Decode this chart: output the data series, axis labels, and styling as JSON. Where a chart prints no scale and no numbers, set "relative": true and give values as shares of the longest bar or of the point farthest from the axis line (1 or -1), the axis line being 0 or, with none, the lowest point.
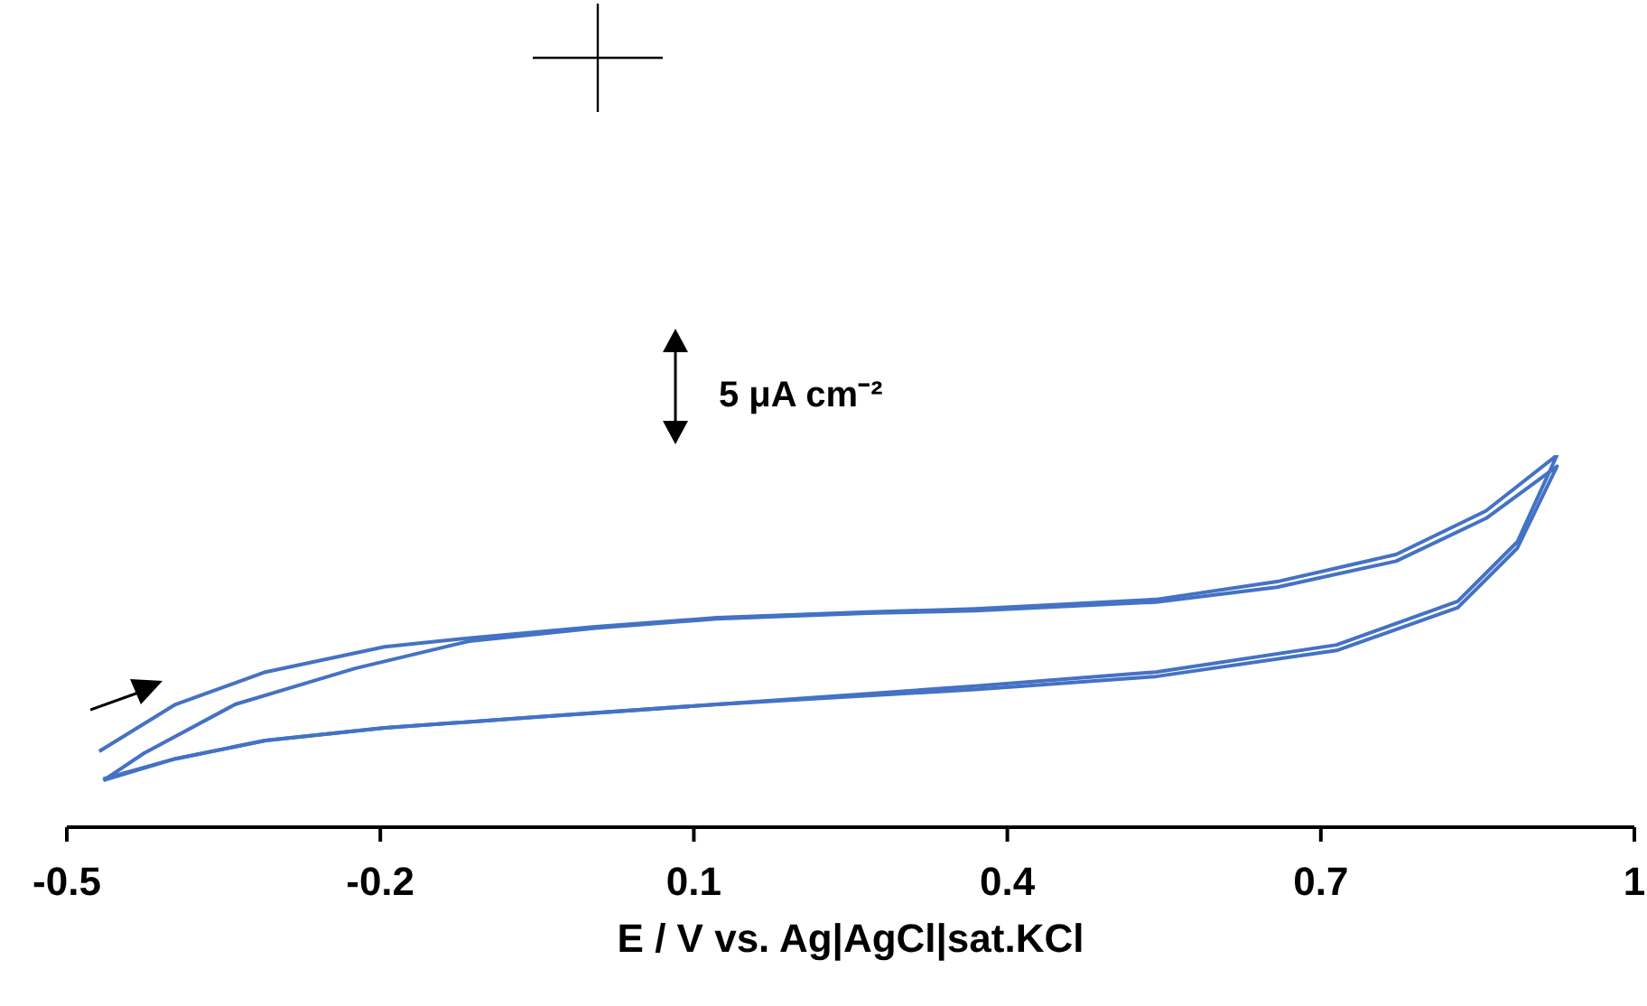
{
  "chart_data": {
    "type": "line",
    "relative": true,
    "xlabel": "E / V vs. Ag|AgCl|sat.KCl",
    "xlim": [
      -0.5,
      1
    ],
    "xticks": [
      -0.5,
      -0.2,
      0.1,
      0.4,
      0.7,
      1
    ],
    "grid": false,
    "marker": "none",
    "line_style": "solid",
    "annotations": [
      "5 μA cm⁻²"
    ],
    "series": [
      {
        "color": "#4472c4",
        "x": [
          -0.469,
          -0.396,
          -0.31,
          -0.196,
          -0.109,
          0.006,
          0.122,
          0.266,
          0.369,
          0.542,
          0.658,
          0.772,
          0.858,
          0.926,
          0.888,
          0.831,
          0.715,
          0.542,
          0.369,
          0.122,
          -0.051,
          -0.196,
          -0.31,
          -0.396,
          -0.465
        ],
        "values": [
          0.204,
          0.33,
          0.417,
          0.485,
          0.51,
          0.539,
          0.563,
          0.578,
          0.587,
          0.612,
          0.66,
          0.733,
          0.85,
          1,
          0.767,
          0.607,
          0.49,
          0.417,
          0.379,
          0.33,
          0.296,
          0.267,
          0.233,
          0.184,
          0.126
        ]
      },
      {
        "color": "#4472c4",
        "x": [
          -0.465,
          -0.426,
          -0.339,
          -0.224,
          -0.115,
          0.006,
          0.122,
          0.266,
          0.369,
          0.542,
          0.658,
          0.772,
          0.858,
          0.926,
          0.888,
          0.831,
          0.715,
          0.542,
          0.369,
          0.122,
          -0.051,
          -0.196,
          -0.31,
          -0.396,
          -0.465
        ],
        "values": [
          0.126,
          0.199,
          0.33,
          0.427,
          0.5,
          0.535,
          0.56,
          0.575,
          0.582,
          0.605,
          0.645,
          0.715,
          0.83,
          0.97,
          0.75,
          0.59,
          0.475,
          0.405,
          0.37,
          0.33,
          0.296,
          0.267,
          0.233,
          0.184,
          0.13
        ]
      }
    ]
  }
}
